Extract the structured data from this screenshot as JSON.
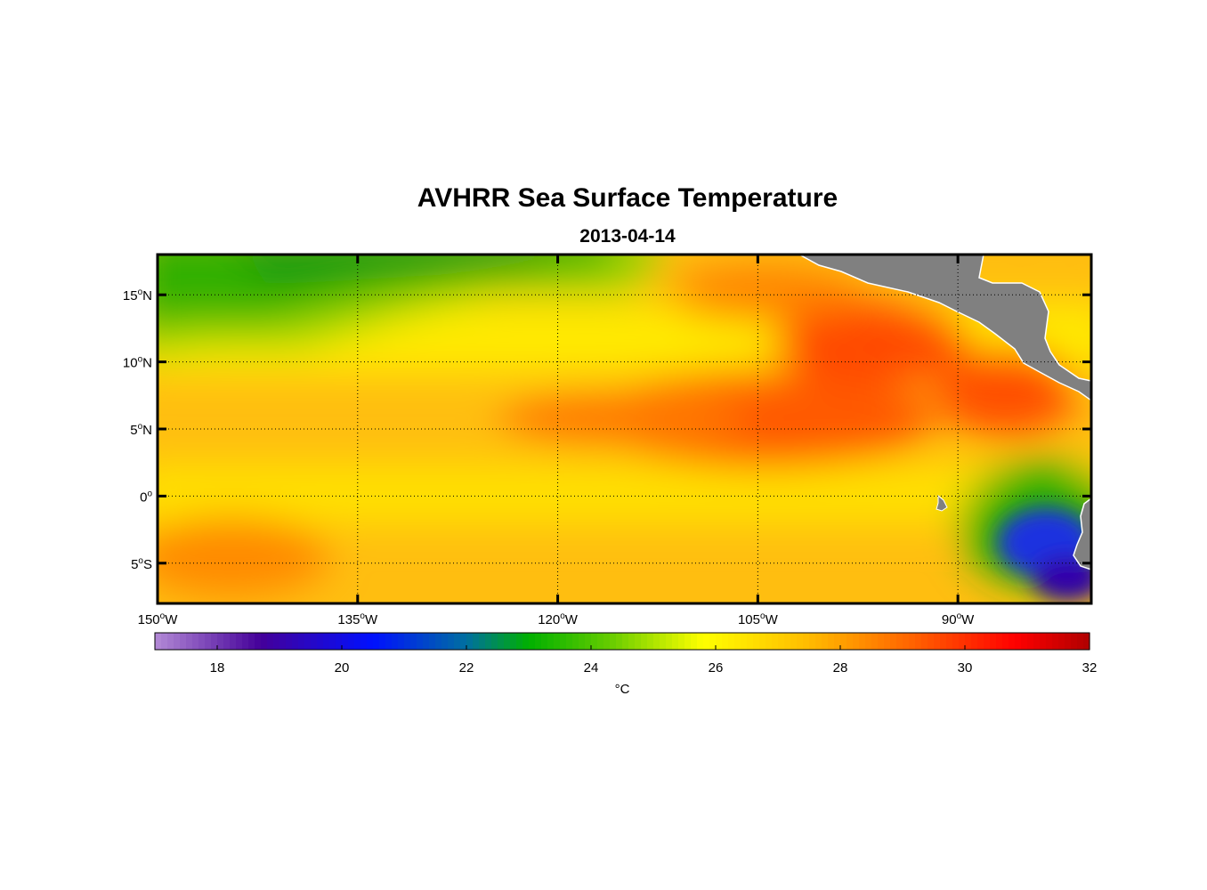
{
  "title": "AVHRR Sea Surface Temperature",
  "subtitle": "2013-04-14",
  "map": {
    "lon_range": [
      -150,
      -80
    ],
    "lat_range": [
      -8,
      18
    ],
    "lon_ticks": [
      {
        "value": -150,
        "num": "150",
        "hemi": "W"
      },
      {
        "value": -135,
        "num": "135",
        "hemi": "W"
      },
      {
        "value": -120,
        "num": "120",
        "hemi": "W"
      },
      {
        "value": -105,
        "num": "105",
        "hemi": "W"
      },
      {
        "value": -90,
        "num": "90",
        "hemi": "W"
      }
    ],
    "lat_ticks": [
      {
        "value": 15,
        "num": "15",
        "hemi": "N"
      },
      {
        "value": 10,
        "num": "10",
        "hemi": "N"
      },
      {
        "value": 5,
        "num": "5",
        "hemi": "N"
      },
      {
        "value": 0,
        "num": "0",
        "hemi": ""
      },
      {
        "value": -5,
        "num": "5",
        "hemi": "S"
      }
    ],
    "degree_symbol": "o",
    "land_color": "#808080",
    "grid": true
  },
  "colorbar": {
    "range": [
      17,
      32
    ],
    "ticks": [
      "18",
      "20",
      "22",
      "24",
      "26",
      "28",
      "30",
      "32"
    ],
    "unit": "°C",
    "stops": [
      {
        "t": 17,
        "c": "#b38ad6"
      },
      {
        "t": 18.7,
        "c": "#440099"
      },
      {
        "t": 20.5,
        "c": "#0010ff"
      },
      {
        "t": 22,
        "c": "#006fa0"
      },
      {
        "t": 23,
        "c": "#00b000"
      },
      {
        "t": 24.3,
        "c": "#66cc00"
      },
      {
        "t": 25.8,
        "c": "#ffff00"
      },
      {
        "t": 27.5,
        "c": "#ffbb00"
      },
      {
        "t": 29.2,
        "c": "#ff6000"
      },
      {
        "t": 30.8,
        "c": "#ff0000"
      },
      {
        "t": 32,
        "c": "#b00000"
      }
    ]
  }
}
